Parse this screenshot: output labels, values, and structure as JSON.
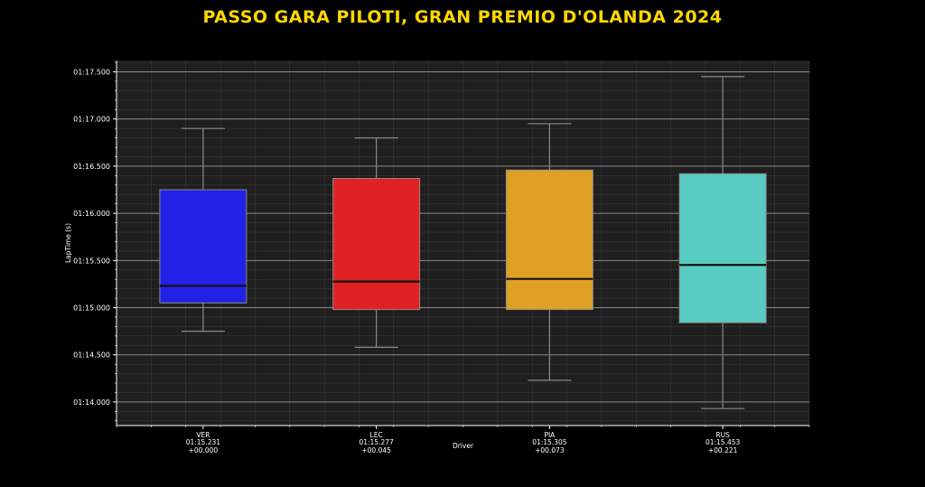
{
  "chart_data": {
    "type": "box",
    "title": "PASSO GARA PILOTI, GRAN PREMIO D'OLANDA 2024",
    "xlabel": "Driver",
    "ylabel": "LapTime (s)",
    "ylim": [
      73.75,
      77.62
    ],
    "y_ticks": [
      {
        "value": 74.0,
        "label": "01:14.000"
      },
      {
        "value": 74.5,
        "label": "01:14.500"
      },
      {
        "value": 75.0,
        "label": "01:15.000"
      },
      {
        "value": 75.5,
        "label": "01:15.500"
      },
      {
        "value": 76.0,
        "label": "01:16.000"
      },
      {
        "value": 76.5,
        "label": "01:16.500"
      },
      {
        "value": 77.0,
        "label": "01:17.000"
      },
      {
        "value": 77.5,
        "label": "01:17.500"
      }
    ],
    "grid": true,
    "series": [
      {
        "name": "VER",
        "median_label": "01:15.231",
        "gap_label": "+00.000",
        "color": "#2222E6",
        "whisker_low": 74.75,
        "q1": 75.05,
        "median": 75.231,
        "q3": 76.25,
        "whisker_high": 76.9
      },
      {
        "name": "LEC",
        "median_label": "01:15.277",
        "gap_label": "+00.045",
        "color": "#E02222",
        "whisker_low": 74.58,
        "q1": 74.98,
        "median": 75.277,
        "q3": 76.37,
        "whisker_high": 76.8
      },
      {
        "name": "PIA",
        "median_label": "01:15.305",
        "gap_label": "+00.073",
        "color": "#E0A024",
        "whisker_low": 74.23,
        "q1": 74.98,
        "median": 75.305,
        "q3": 76.46,
        "whisker_high": 76.95
      },
      {
        "name": "RUS",
        "median_label": "01:15.453",
        "gap_label": "+00.221",
        "color": "#58CCC2",
        "whisker_low": 73.93,
        "q1": 74.84,
        "median": 75.453,
        "q3": 76.42,
        "whisker_high": 77.45
      }
    ]
  }
}
